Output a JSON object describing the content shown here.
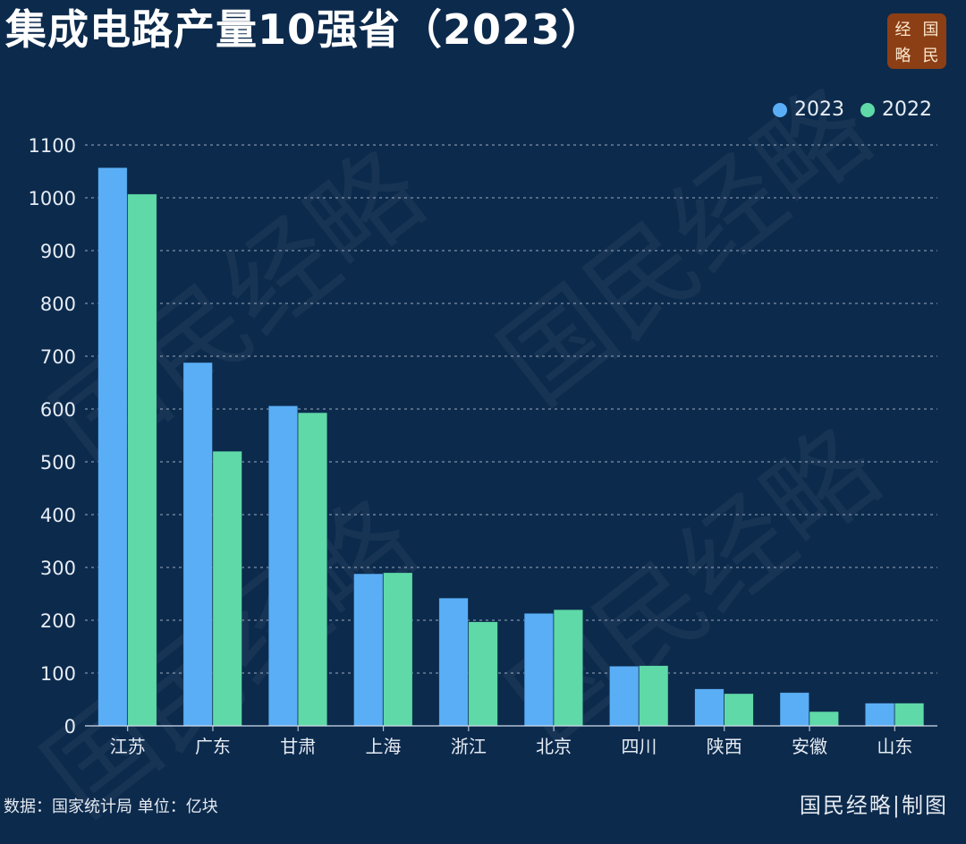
{
  "header": {
    "title": "集成电路产量10强省（2023）",
    "logo_chars": [
      "经",
      "国",
      "略",
      "民"
    ]
  },
  "legend": [
    {
      "label": "2023",
      "color": "#5aaef5"
    },
    {
      "label": "2022",
      "color": "#5fd9a7"
    }
  ],
  "watermark_text": "国民经略",
  "footer": {
    "source": "数据：国家统计局  单位：亿块",
    "brand": "国民经略|制图"
  },
  "chart_data": {
    "type": "bar",
    "categories": [
      "江苏",
      "广东",
      "甘肃",
      "上海",
      "浙江",
      "北京",
      "四川",
      "陕西",
      "安徽",
      "山东"
    ],
    "series": [
      {
        "name": "2023",
        "color": "#5aaef5",
        "values": [
          1057,
          688,
          606,
          288,
          242,
          213,
          113,
          70,
          63,
          43
        ]
      },
      {
        "name": "2022",
        "color": "#5fd9a7",
        "values": [
          1007,
          520,
          593,
          290,
          197,
          220,
          114,
          61,
          27,
          43
        ]
      }
    ],
    "yticks": [
      0,
      100,
      200,
      300,
      400,
      500,
      600,
      700,
      800,
      900,
      1000,
      1100
    ],
    "ylim": [
      0,
      1100
    ],
    "grid": true,
    "legend_position": "top-right"
  }
}
